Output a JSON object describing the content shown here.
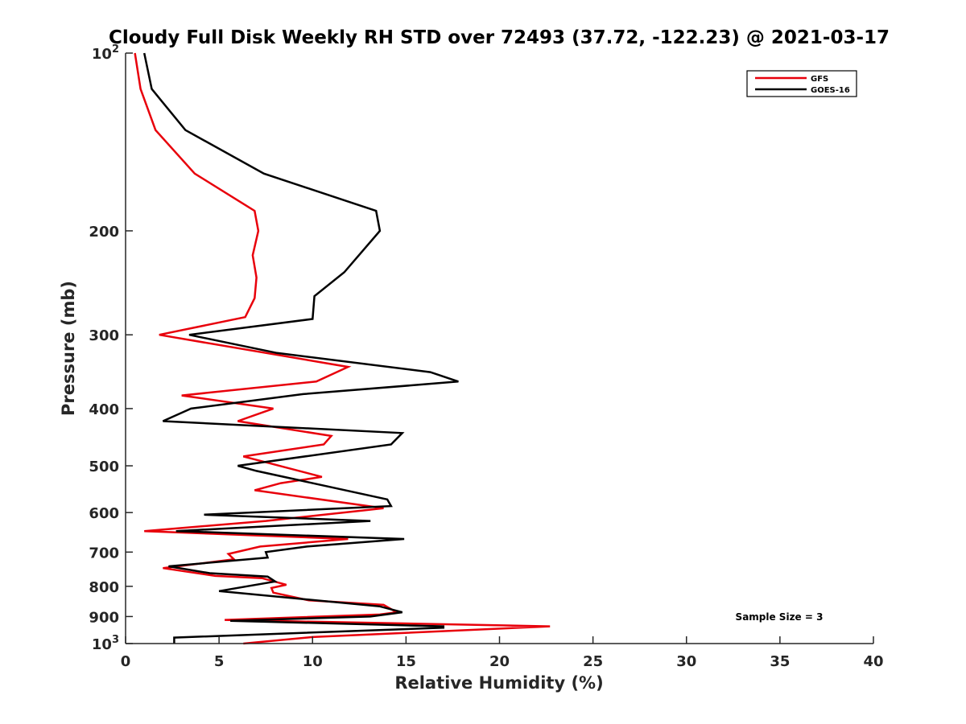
{
  "chart_data": {
    "type": "line",
    "title": "Cloudy Full Disk Weekly RH STD over 72493 (37.72, -122.23) @ 2021-03-17",
    "xlabel": "Relative Humidity (%)",
    "ylabel": "Pressure (mb)",
    "xlim": [
      0,
      40
    ],
    "ylim": [
      100,
      1000
    ],
    "y_scale": "log",
    "y_reversed": true,
    "grid": false,
    "legend_position": "top-right",
    "annotation": "Sample Size = 3",
    "x_ticks": [
      "0",
      "5",
      "10",
      "15",
      "20",
      "25",
      "30",
      "35",
      "40"
    ],
    "y_ticks": [
      {
        "value": 100,
        "base": "10",
        "exp": "2"
      },
      {
        "value": 200,
        "label": "200"
      },
      {
        "value": 300,
        "label": "300"
      },
      {
        "value": 400,
        "label": "400"
      },
      {
        "value": 500,
        "label": "500"
      },
      {
        "value": 600,
        "label": "600"
      },
      {
        "value": 700,
        "label": "700"
      },
      {
        "value": 800,
        "label": "800"
      },
      {
        "value": 900,
        "label": "900"
      },
      {
        "value": 1000,
        "base": "10",
        "exp": "3"
      }
    ],
    "series": [
      {
        "name": "GFS",
        "color": "#e8000b",
        "points": [
          {
            "rh": 0.5,
            "p": 100
          },
          {
            "rh": 0.8,
            "p": 115
          },
          {
            "rh": 1.6,
            "p": 135
          },
          {
            "rh": 3.7,
            "p": 160
          },
          {
            "rh": 6.9,
            "p": 185
          },
          {
            "rh": 7.1,
            "p": 200
          },
          {
            "rh": 6.8,
            "p": 220
          },
          {
            "rh": 7.0,
            "p": 240
          },
          {
            "rh": 6.9,
            "p": 260
          },
          {
            "rh": 6.4,
            "p": 280
          },
          {
            "rh": 1.8,
            "p": 300
          },
          {
            "rh": 11.9,
            "p": 340
          },
          {
            "rh": 10.2,
            "p": 360
          },
          {
            "rh": 3.0,
            "p": 380
          },
          {
            "rh": 7.9,
            "p": 400
          },
          {
            "rh": 6.0,
            "p": 420
          },
          {
            "rh": 11.0,
            "p": 445
          },
          {
            "rh": 10.6,
            "p": 460
          },
          {
            "rh": 6.3,
            "p": 482
          },
          {
            "rh": 7.7,
            "p": 495
          },
          {
            "rh": 10.5,
            "p": 522
          },
          {
            "rh": 8.3,
            "p": 535
          },
          {
            "rh": 6.9,
            "p": 550
          },
          {
            "rh": 13.8,
            "p": 590
          },
          {
            "rh": 7.5,
            "p": 620
          },
          {
            "rh": 1.0,
            "p": 645
          },
          {
            "rh": 11.9,
            "p": 665
          },
          {
            "rh": 7.2,
            "p": 685
          },
          {
            "rh": 5.5,
            "p": 705
          },
          {
            "rh": 5.8,
            "p": 720
          },
          {
            "rh": 2.0,
            "p": 745
          },
          {
            "rh": 4.8,
            "p": 768
          },
          {
            "rh": 7.3,
            "p": 775
          },
          {
            "rh": 8.6,
            "p": 795
          },
          {
            "rh": 7.8,
            "p": 805
          },
          {
            "rh": 7.9,
            "p": 820
          },
          {
            "rh": 9.8,
            "p": 845
          },
          {
            "rh": 13.8,
            "p": 860
          },
          {
            "rh": 14.5,
            "p": 885
          },
          {
            "rh": 13.6,
            "p": 893
          },
          {
            "rh": 5.3,
            "p": 912
          },
          {
            "rh": 6.0,
            "p": 913
          },
          {
            "rh": 22.7,
            "p": 935
          },
          {
            "rh": 10.0,
            "p": 975
          },
          {
            "rh": 6.3,
            "p": 1000
          }
        ]
      },
      {
        "name": "GOES-16",
        "color": "#000000",
        "points": [
          {
            "rh": 1.0,
            "p": 100
          },
          {
            "rh": 1.4,
            "p": 115
          },
          {
            "rh": 3.2,
            "p": 135
          },
          {
            "rh": 7.4,
            "p": 160
          },
          {
            "rh": 13.4,
            "p": 185
          },
          {
            "rh": 13.6,
            "p": 200
          },
          {
            "rh": 11.7,
            "p": 235
          },
          {
            "rh": 10.1,
            "p": 258
          },
          {
            "rh": 10.0,
            "p": 282
          },
          {
            "rh": 3.4,
            "p": 300
          },
          {
            "rh": 8.1,
            "p": 322
          },
          {
            "rh": 16.3,
            "p": 347
          },
          {
            "rh": 17.8,
            "p": 360
          },
          {
            "rh": 9.5,
            "p": 378
          },
          {
            "rh": 3.5,
            "p": 400
          },
          {
            "rh": 2.0,
            "p": 420
          },
          {
            "rh": 14.8,
            "p": 440
          },
          {
            "rh": 14.2,
            "p": 460
          },
          {
            "rh": 6.0,
            "p": 500
          },
          {
            "rh": 7.0,
            "p": 510
          },
          {
            "rh": 14.0,
            "p": 570
          },
          {
            "rh": 14.2,
            "p": 585
          },
          {
            "rh": 4.2,
            "p": 605
          },
          {
            "rh": 13.1,
            "p": 620
          },
          {
            "rh": 2.7,
            "p": 645
          },
          {
            "rh": 14.9,
            "p": 665
          },
          {
            "rh": 9.7,
            "p": 685
          },
          {
            "rh": 7.5,
            "p": 700
          },
          {
            "rh": 7.6,
            "p": 715
          },
          {
            "rh": 2.3,
            "p": 740
          },
          {
            "rh": 4.5,
            "p": 760
          },
          {
            "rh": 7.6,
            "p": 770
          },
          {
            "rh": 8.0,
            "p": 785
          },
          {
            "rh": 5.0,
            "p": 815
          },
          {
            "rh": 13.6,
            "p": 865
          },
          {
            "rh": 14.8,
            "p": 885
          },
          {
            "rh": 13.1,
            "p": 900
          },
          {
            "rh": 5.6,
            "p": 915
          },
          {
            "rh": 17.0,
            "p": 935
          },
          {
            "rh": 17.0,
            "p": 940
          },
          {
            "rh": 2.6,
            "p": 977
          },
          {
            "rh": 2.6,
            "p": 1000
          }
        ]
      }
    ]
  }
}
